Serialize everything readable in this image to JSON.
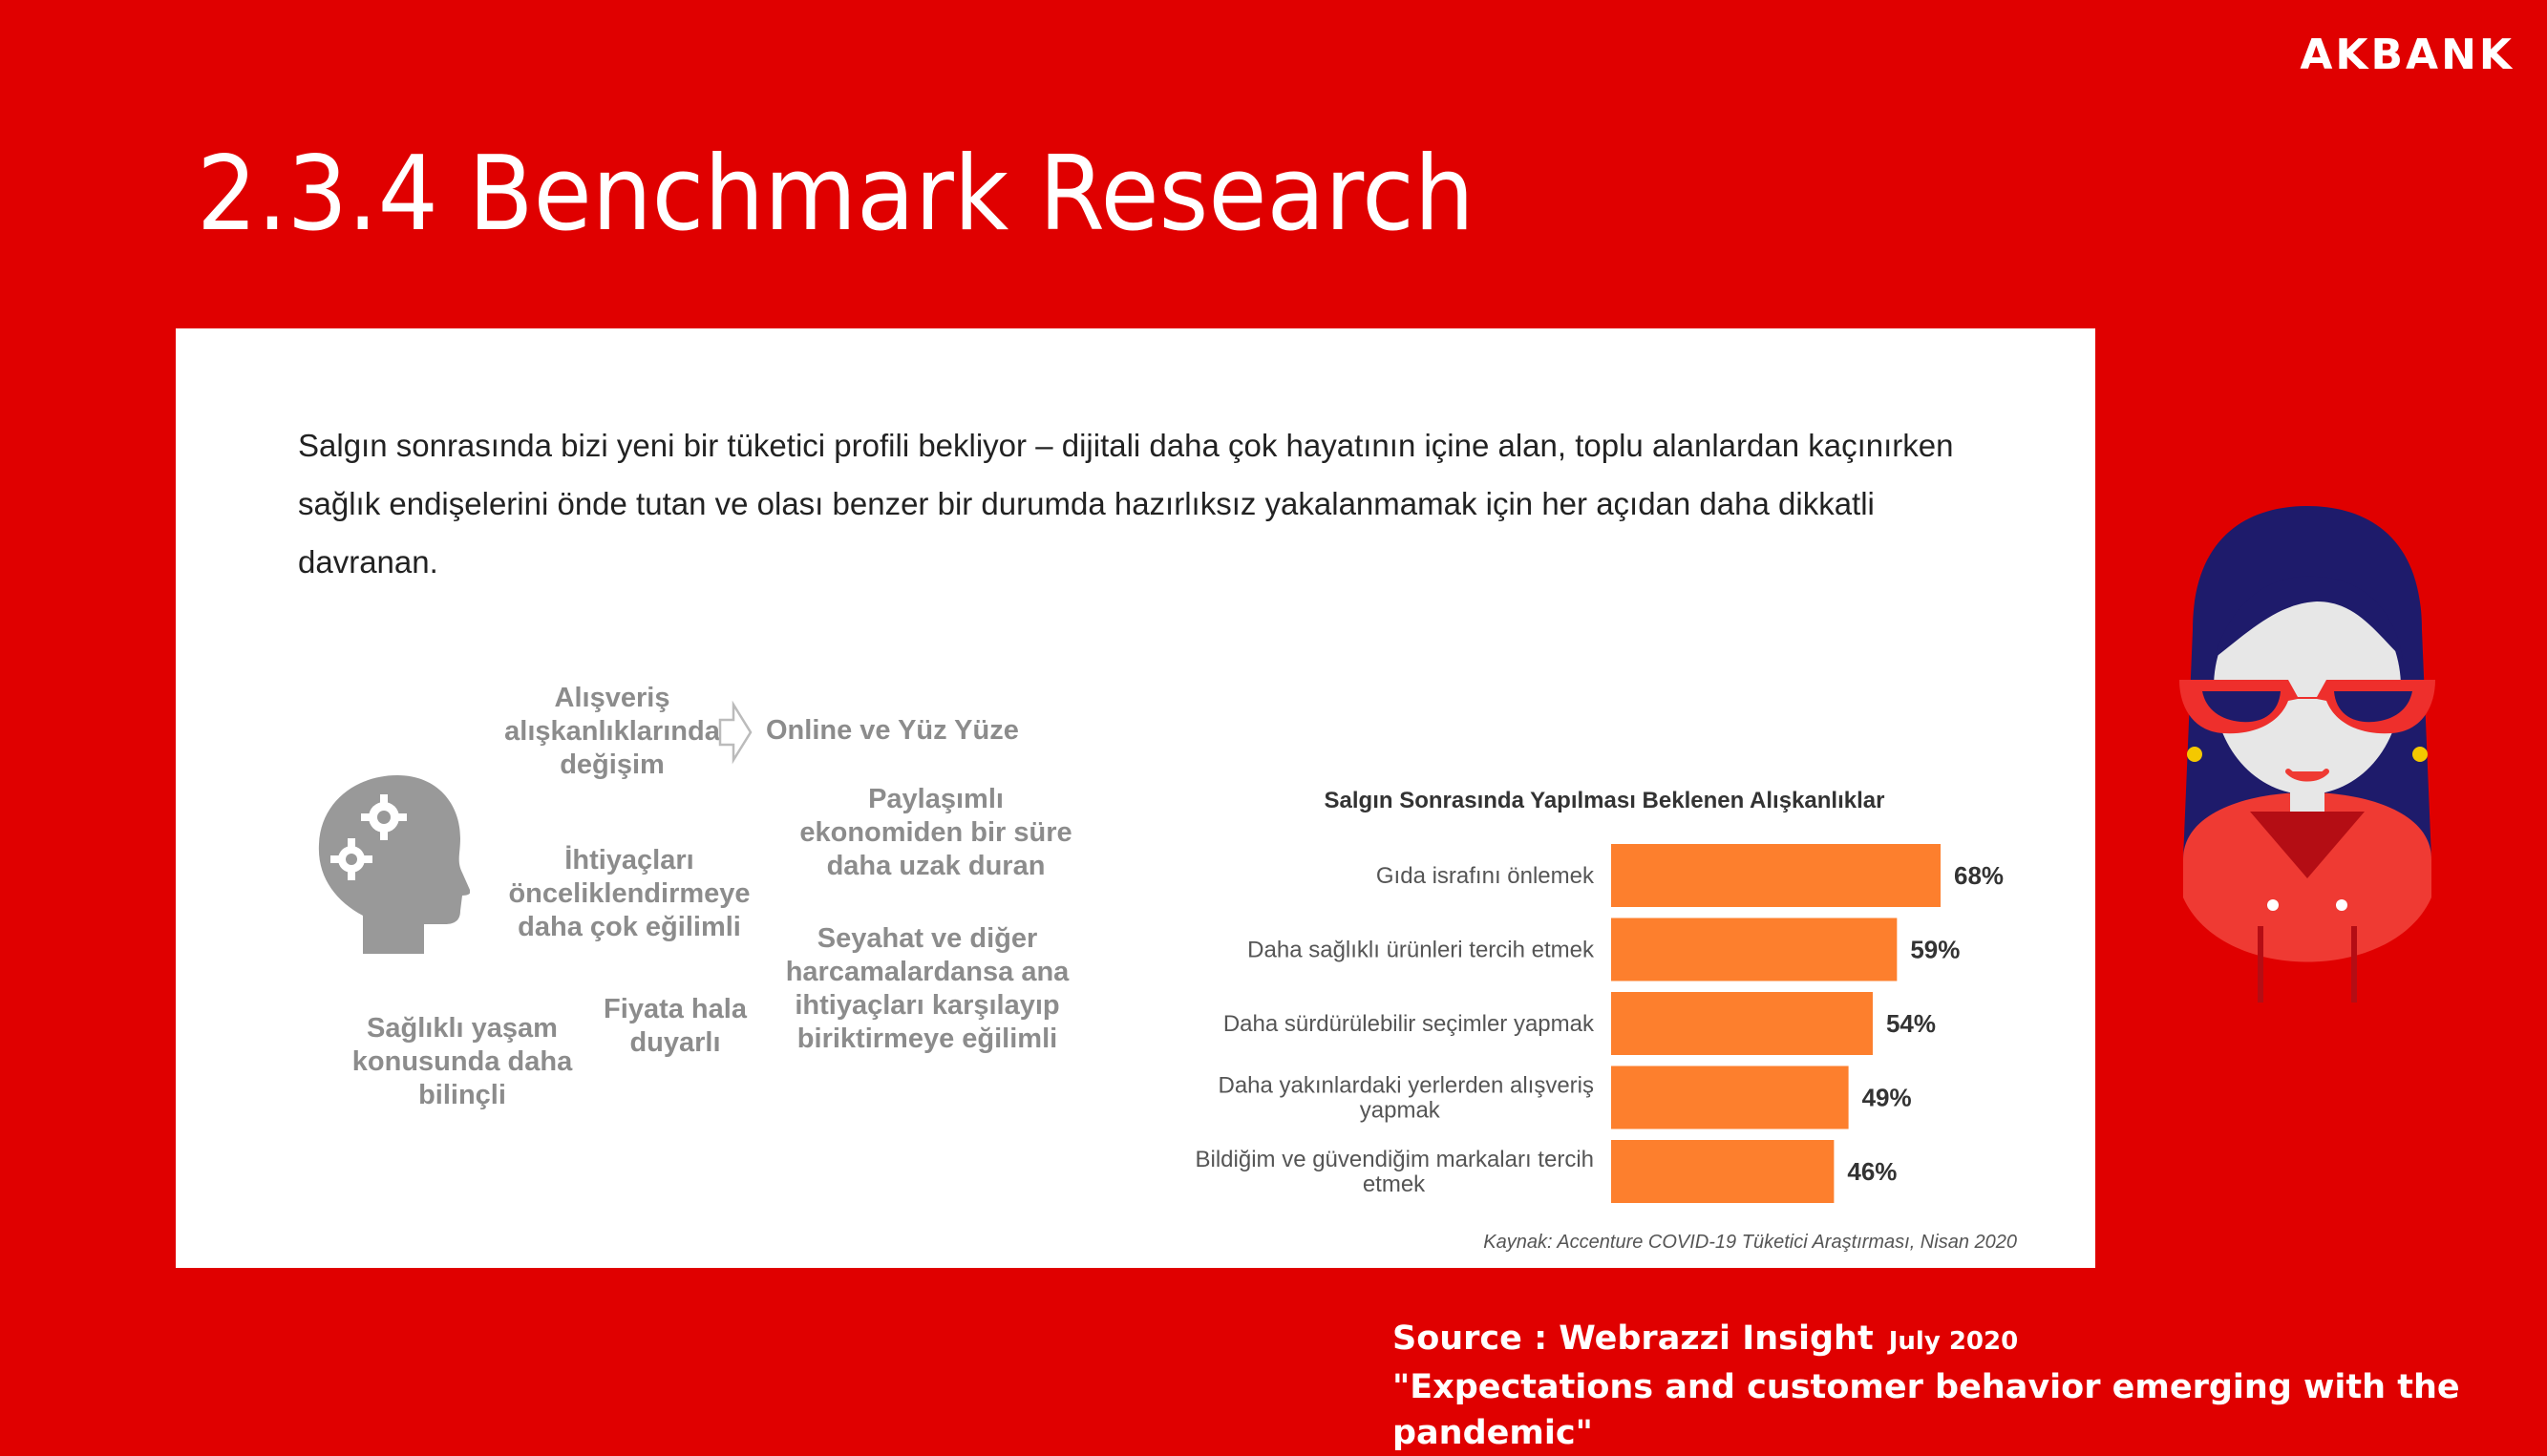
{
  "brand": "AKBANK",
  "title": "2.3.4 Benchmark Research",
  "intro_text": "Salgın sonrasında bizi yeni bir tüketici profili bekliyor – dijitali daha çok hayatının içine alan, toplu alanlardan kaçınırken sağlık endişelerini önde tutan ve olası benzer bir durumda hazırlıksız yakalanmamak için her açıdan daha dikkatli davranan.",
  "labels": {
    "habit_change": "Alışveriş alışkanlıklarında değişim",
    "online_offline": "Online ve Yüz Yüze",
    "shared_economy": "Paylaşımlı ekonomiden bir süre daha uzak duran",
    "prioritize_needs": "İhtiyaçları önceliklendirmeye daha çok eğilimli",
    "travel_saving": "Seyahat ve diğer harcamalardansa ana ihtiyaçları karşılayıp biriktirmeye eğilimli",
    "price_sensitive": "Fiyata hala duyarlı",
    "health_conscious": "Sağlıklı yaşam konusunda daha bilinçli"
  },
  "icons": {
    "head": "head-with-gears-icon",
    "arrow": "arrow-right-outline-icon",
    "avatar": "woman-with-sunglasses-illustration"
  },
  "chart_data": {
    "type": "bar",
    "orientation": "horizontal",
    "title": "Salgın Sonrasında Yapılması Beklenen Alışkanlıklar",
    "categories": [
      "Gıda israfını önlemek",
      "Daha sağlıklı ürünleri tercih etmek",
      "Daha sürdürülebilir seçimler yapmak",
      "Daha yakınlardaki yerlerden alışveriş yapmak",
      "Bildiğim ve güvendiğim markaları tercih etmek"
    ],
    "values": [
      68,
      59,
      54,
      49,
      46
    ],
    "value_labels": [
      "68%",
      "59%",
      "54%",
      "49%",
      "46%"
    ],
    "bar_color": "#fd7f2d",
    "grid": false,
    "legend": "none"
  },
  "chart_source": "Kaynak: Accenture COVID-19 Tüketici Araştırması, Nisan 2020",
  "footer": {
    "source_label": "Source : Webrazzi Insight",
    "date": "July 2020",
    "quote": "\"Expectations and customer behavior emerging with the pandemic\""
  },
  "colors": {
    "background": "#e00000",
    "panel": "#ffffff",
    "bar": "#fd7f2d",
    "label_gray": "#8c8c8c"
  }
}
